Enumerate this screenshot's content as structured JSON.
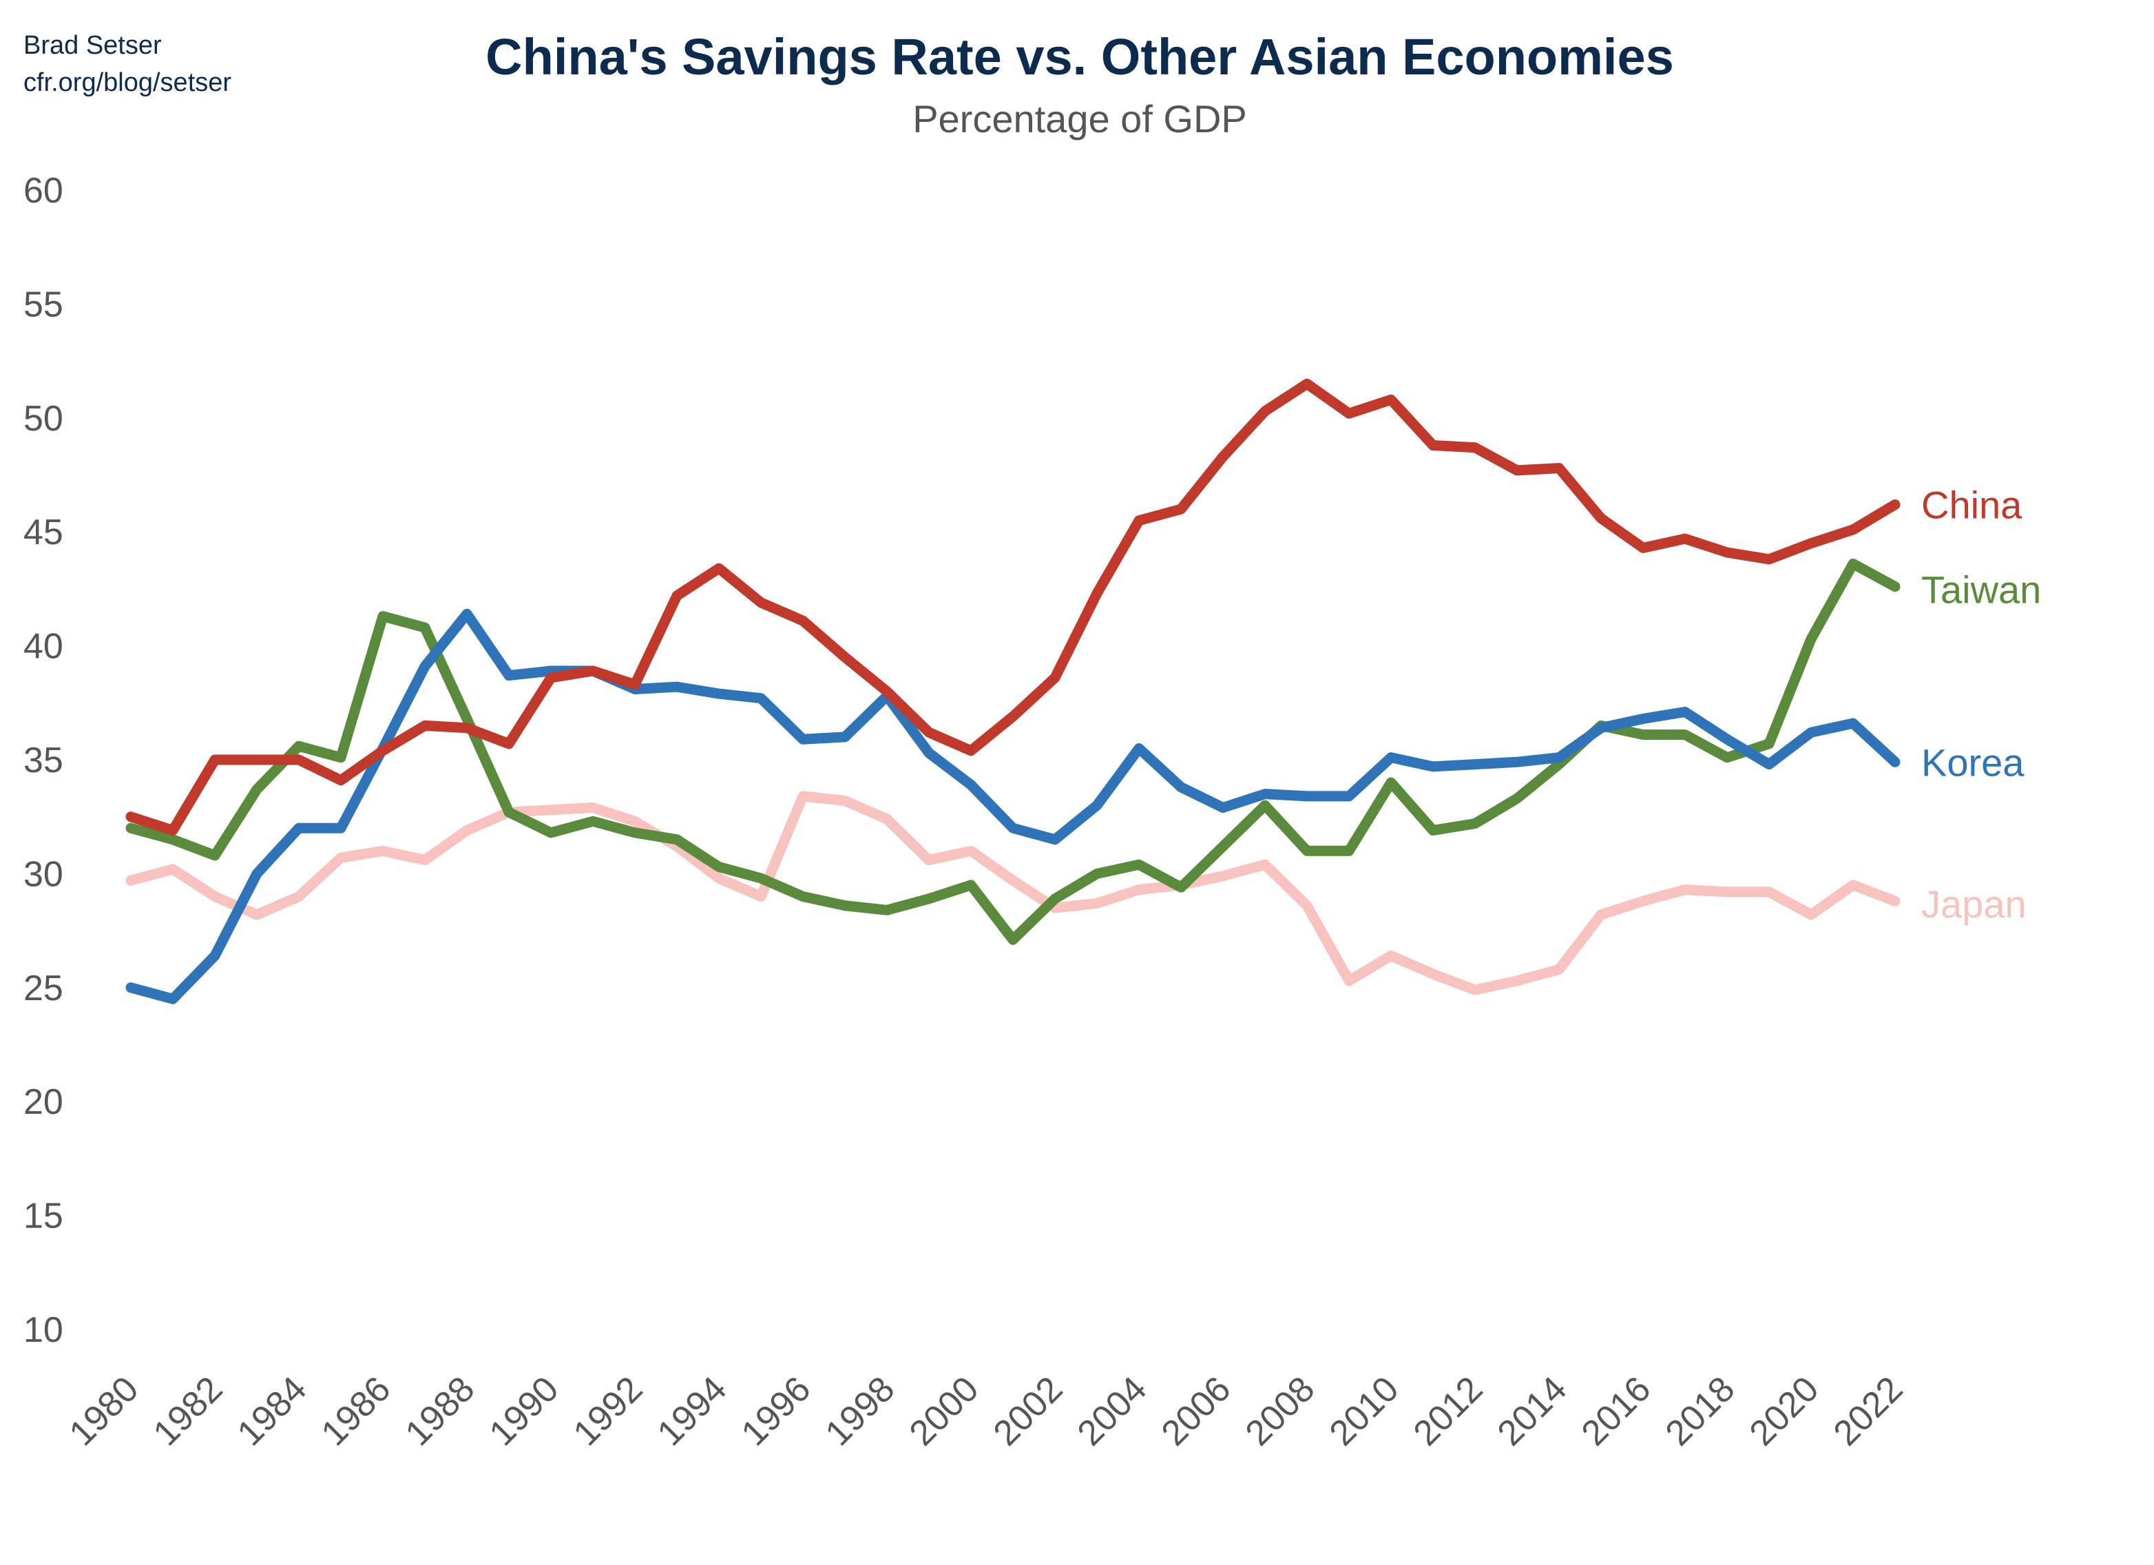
{
  "credit": {
    "author": "Brad Setser",
    "site": "cfr.org/blog/setser"
  },
  "chart_data": {
    "type": "line",
    "title": "China's Savings Rate vs. Other Asian Economies",
    "subtitle": "Percentage of GDP",
    "xlabel": "",
    "ylabel": "",
    "ylim": [
      10,
      60
    ],
    "yticks": [
      10,
      15,
      20,
      25,
      30,
      35,
      40,
      45,
      50,
      55,
      60
    ],
    "xticks": [
      1980,
      1982,
      1984,
      1986,
      1988,
      1990,
      1992,
      1994,
      1996,
      1998,
      2000,
      2002,
      2004,
      2006,
      2008,
      2010,
      2012,
      2014,
      2016,
      2018,
      2020,
      2022
    ],
    "grid": false,
    "legend": "direct labels at right end of lines",
    "x": [
      1980,
      1981,
      1982,
      1983,
      1984,
      1985,
      1986,
      1987,
      1988,
      1989,
      1990,
      1991,
      1992,
      1993,
      1994,
      1995,
      1996,
      1997,
      1998,
      1999,
      2000,
      2001,
      2002,
      2003,
      2004,
      2005,
      2006,
      2007,
      2008,
      2009,
      2010,
      2011,
      2012,
      2013,
      2014,
      2015,
      2016,
      2017,
      2018,
      2019,
      2020,
      2021,
      2022
    ],
    "series": [
      {
        "name": "Japan",
        "color": "#f8c3bf",
        "values": [
          29.7,
          30.2,
          29.0,
          28.2,
          29.0,
          30.7,
          31.0,
          30.6,
          31.9,
          32.7,
          32.8,
          32.9,
          32.3,
          31.2,
          29.8,
          29.0,
          33.4,
          33.2,
          32.4,
          30.6,
          31.0,
          29.7,
          28.5,
          28.7,
          29.3,
          29.5,
          29.9,
          30.4,
          28.6,
          25.3,
          26.4,
          25.6,
          24.9,
          25.3,
          25.8,
          28.2,
          28.8,
          29.3,
          29.2,
          29.2,
          28.2,
          29.5,
          28.8
        ]
      },
      {
        "name": "Taiwan",
        "color": "#5a8a3c",
        "values": [
          32.0,
          31.5,
          30.8,
          33.7,
          35.6,
          35.1,
          41.3,
          40.8,
          36.8,
          32.7,
          31.8,
          32.3,
          31.8,
          31.5,
          30.3,
          29.8,
          29.0,
          28.6,
          28.4,
          28.9,
          29.5,
          27.1,
          28.9,
          30.0,
          30.4,
          29.4,
          31.2,
          33.0,
          31.0,
          31.0,
          34.0,
          31.9,
          32.2,
          33.3,
          34.8,
          36.5,
          36.1,
          36.1,
          35.1,
          35.7,
          40.3,
          43.6,
          42.6
        ]
      },
      {
        "name": "Korea",
        "color": "#2f73b9",
        "values": [
          25.0,
          24.5,
          26.4,
          30.0,
          32.0,
          32.0,
          35.5,
          39.1,
          41.4,
          38.7,
          38.9,
          38.9,
          38.1,
          38.2,
          37.9,
          37.7,
          35.9,
          36.0,
          37.8,
          35.3,
          33.9,
          32.0,
          31.5,
          33.0,
          35.5,
          33.8,
          32.9,
          33.5,
          33.4,
          33.4,
          35.1,
          34.7,
          34.8,
          34.9,
          35.1,
          36.4,
          36.8,
          37.1,
          35.9,
          34.8,
          36.2,
          36.6,
          34.9
        ]
      },
      {
        "name": "China",
        "color": "#c0392b",
        "values": [
          32.5,
          31.9,
          35.0,
          35.0,
          35.0,
          34.1,
          35.4,
          36.5,
          36.4,
          35.7,
          38.6,
          38.9,
          38.3,
          42.2,
          43.4,
          41.9,
          41.1,
          39.5,
          38.0,
          36.2,
          35.4,
          36.9,
          38.6,
          42.3,
          45.5,
          46.0,
          48.3,
          50.3,
          51.5,
          50.2,
          50.8,
          48.8,
          48.7,
          47.7,
          47.8,
          45.6,
          44.3,
          44.7,
          44.1,
          43.8,
          44.5,
          45.1,
          46.2
        ]
      }
    ]
  }
}
